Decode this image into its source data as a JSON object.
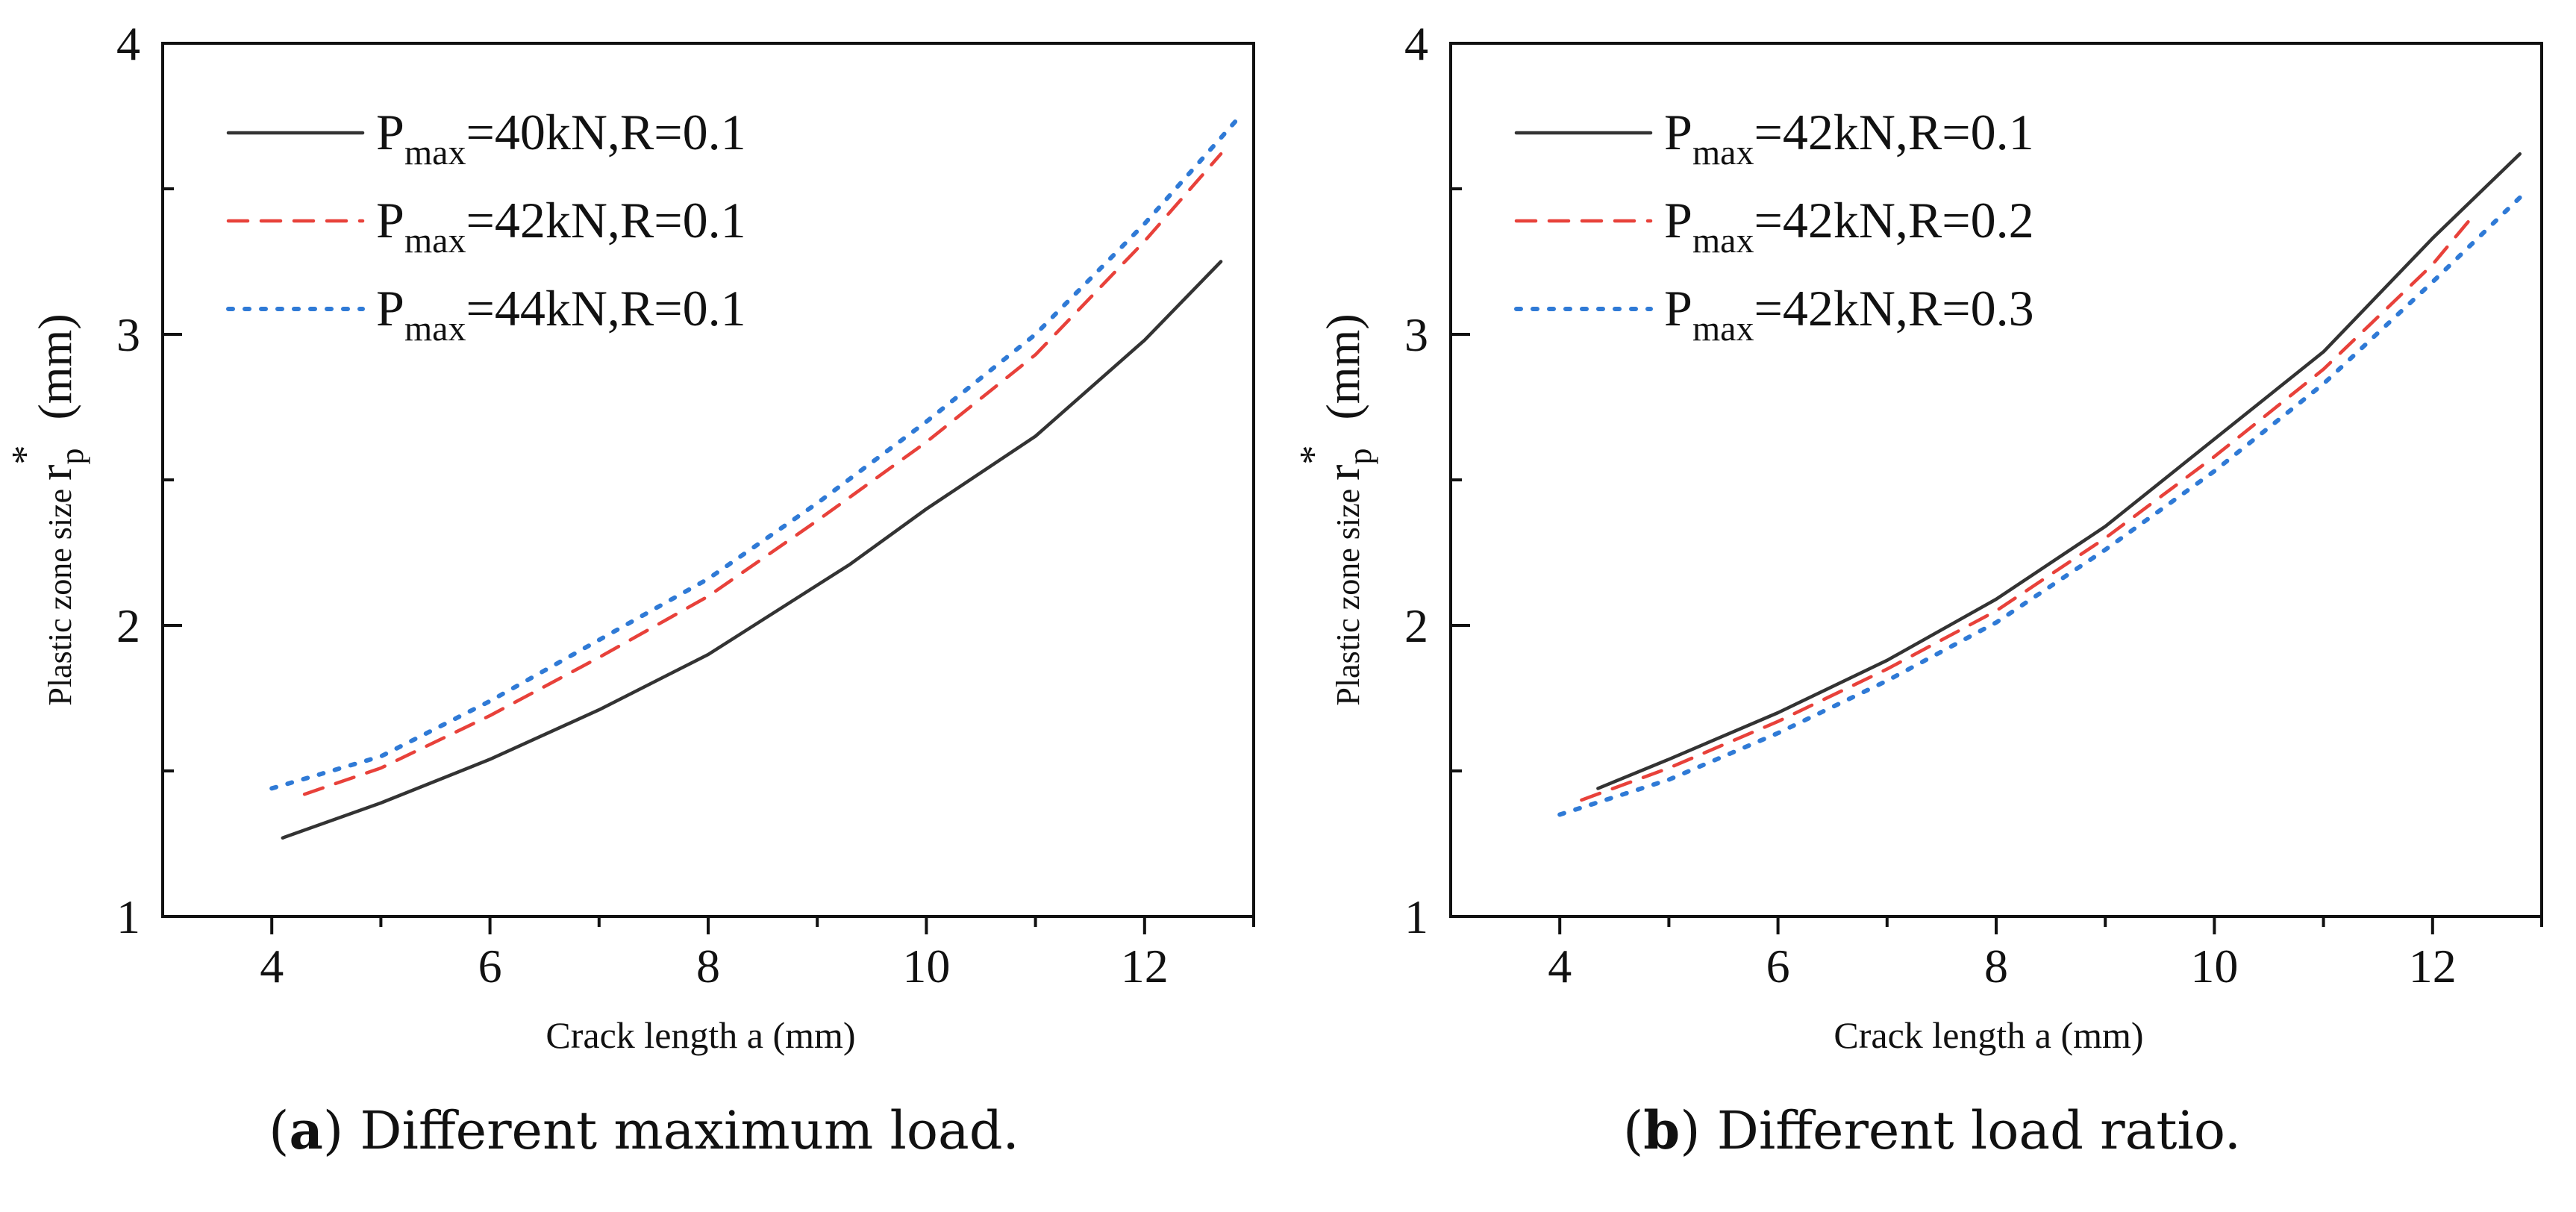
{
  "chart_data": [
    {
      "id": "a",
      "type": "line",
      "caption": {
        "letter": "a",
        "text": ") Different maximum load."
      },
      "xlabel": "Crack length a (mm)",
      "ylabel_prefix": "Plastic zone size ",
      "ylabel_symbol": "r",
      "ylabel_sub": "p",
      "ylabel_sup": "*",
      "ylabel_unit": "(mm)",
      "xlim": [
        3.0,
        13.0
      ],
      "ylim": [
        1,
        4
      ],
      "xticks": [
        4,
        6,
        8,
        10,
        12
      ],
      "yticks": [
        1,
        2,
        3,
        4
      ],
      "legend_position": "top-left",
      "series": [
        {
          "name": "P",
          "sub": "max",
          "label": "=40kN,R=0.1",
          "color": "#333333",
          "dash": "solid",
          "x": [
            4.1,
            5,
            6,
            7,
            8,
            9.3,
            10,
            11,
            12,
            12.7
          ],
          "y": [
            1.27,
            1.39,
            1.54,
            1.71,
            1.9,
            2.21,
            2.4,
            2.65,
            2.98,
            3.25
          ]
        },
        {
          "name": "P",
          "sub": "max",
          "label": "=42kN,R=0.1",
          "color": "#e8413a",
          "dash": "dashed",
          "x": [
            4.3,
            5,
            6,
            7,
            8,
            9,
            10,
            11,
            12,
            12.7
          ],
          "y": [
            1.42,
            1.51,
            1.69,
            1.89,
            2.1,
            2.36,
            2.63,
            2.93,
            3.32,
            3.62
          ]
        },
        {
          "name": "P",
          "sub": "max",
          "label": "=44kN,R=0.1",
          "color": "#2f7ad6",
          "dash": "dotted",
          "x": [
            4.0,
            5,
            6,
            7,
            8,
            9,
            10,
            11,
            12,
            12.9
          ],
          "y": [
            1.44,
            1.55,
            1.74,
            1.95,
            2.16,
            2.42,
            2.7,
            3.0,
            3.38,
            3.76
          ]
        }
      ]
    },
    {
      "id": "b",
      "type": "line",
      "caption": {
        "letter": "b",
        "text": ") Different load ratio."
      },
      "xlabel": "Crack length a (mm)",
      "ylabel_prefix": "Plastic zone size ",
      "ylabel_symbol": "r",
      "ylabel_sub": "p",
      "ylabel_sup": "*",
      "ylabel_unit": "(mm)",
      "xlim": [
        3.0,
        13.0
      ],
      "ylim": [
        1,
        4
      ],
      "xticks": [
        4,
        6,
        8,
        10,
        12
      ],
      "yticks": [
        1,
        2,
        3,
        4
      ],
      "legend_position": "top-left",
      "series": [
        {
          "name": "P",
          "sub": "max",
          "label": "=42kN,R=0.1",
          "color": "#333333",
          "dash": "solid",
          "x": [
            4.35,
            5,
            6,
            7,
            8,
            9,
            10,
            11,
            12,
            12.8
          ],
          "y": [
            1.44,
            1.54,
            1.7,
            1.88,
            2.09,
            2.34,
            2.64,
            2.94,
            3.33,
            3.62
          ]
        },
        {
          "name": "P",
          "sub": "max",
          "label": "=42kN,R=0.2",
          "color": "#e8413a",
          "dash": "dashed",
          "x": [
            4.2,
            5,
            6,
            7,
            8,
            9,
            10,
            11,
            12,
            12.4
          ],
          "y": [
            1.4,
            1.51,
            1.67,
            1.85,
            2.05,
            2.3,
            2.58,
            2.88,
            3.24,
            3.42
          ]
        },
        {
          "name": "P",
          "sub": "max",
          "label": "=42kN,R=0.3",
          "color": "#2f7ad6",
          "dash": "dotted",
          "x": [
            4.0,
            5,
            6,
            7,
            8,
            9,
            10,
            11,
            12,
            12.8
          ],
          "y": [
            1.35,
            1.47,
            1.63,
            1.81,
            2.01,
            2.26,
            2.53,
            2.83,
            3.18,
            3.47
          ]
        }
      ]
    }
  ]
}
